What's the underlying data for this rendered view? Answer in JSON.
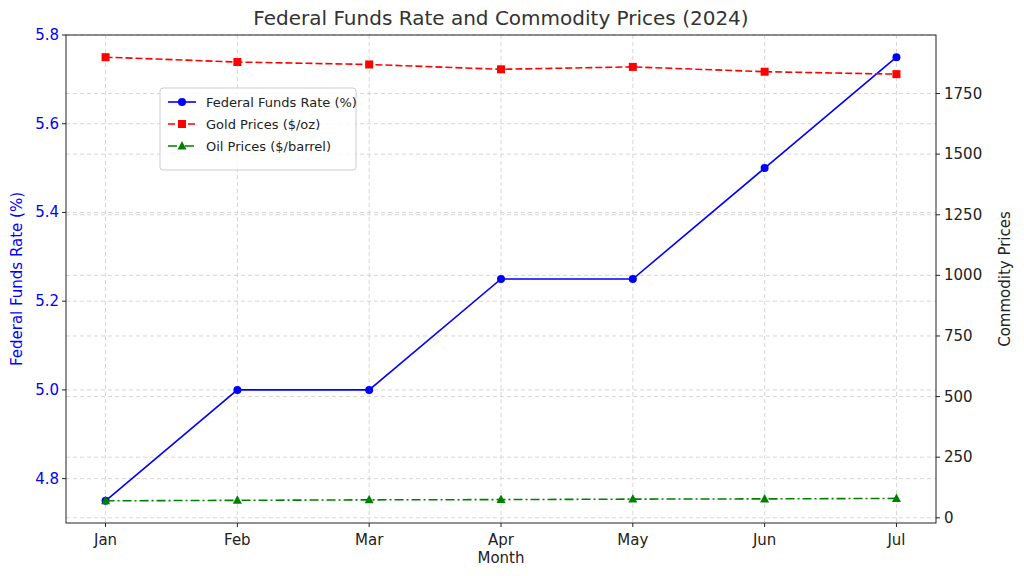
{
  "chart_data": {
    "type": "line",
    "title": "Federal Funds Rate and Commodity Prices (2024)",
    "x_label": "Month",
    "y_label": "Federal Funds Rate (%)",
    "y2_label": "Commodity Prices",
    "categories": [
      "Jan",
      "Feb",
      "Mar",
      "Apr",
      "May",
      "Jun",
      "Jul"
    ],
    "series": [
      {
        "name": "Federal Funds Rate (%)",
        "color": "#0000ff",
        "marker": "circle",
        "line_style": "solid",
        "axis": "y",
        "values": [
          4.75,
          5.0,
          5.0,
          5.25,
          5.25,
          5.5,
          5.75
        ]
      },
      {
        "name": "Gold Prices ($/oz)",
        "color": "#ff0000",
        "marker": "square",
        "line_style": "dashed",
        "axis": "y2",
        "values": [
          1900,
          1880,
          1870,
          1850,
          1860,
          1840,
          1830
        ]
      },
      {
        "name": "Oil Prices ($/barrel)",
        "color": "#008000",
        "marker": "triangle",
        "line_style": "dashdot",
        "axis": "y2",
        "values": [
          70,
          72,
          74,
          75,
          77,
          78,
          80
        ]
      }
    ],
    "ylim": [
      4.7,
      5.8
    ],
    "yticks": [
      4.8,
      {
        "value": 5.0,
        "label": "5.0"
      },
      5.2,
      5.4,
      5.6,
      5.8
    ],
    "y2lim": [
      -21.5,
      1991.5
    ],
    "y2ticks": [
      0,
      250,
      500,
      750,
      1000,
      1250,
      1500,
      1750
    ],
    "grid": true,
    "legend": "upper left"
  }
}
